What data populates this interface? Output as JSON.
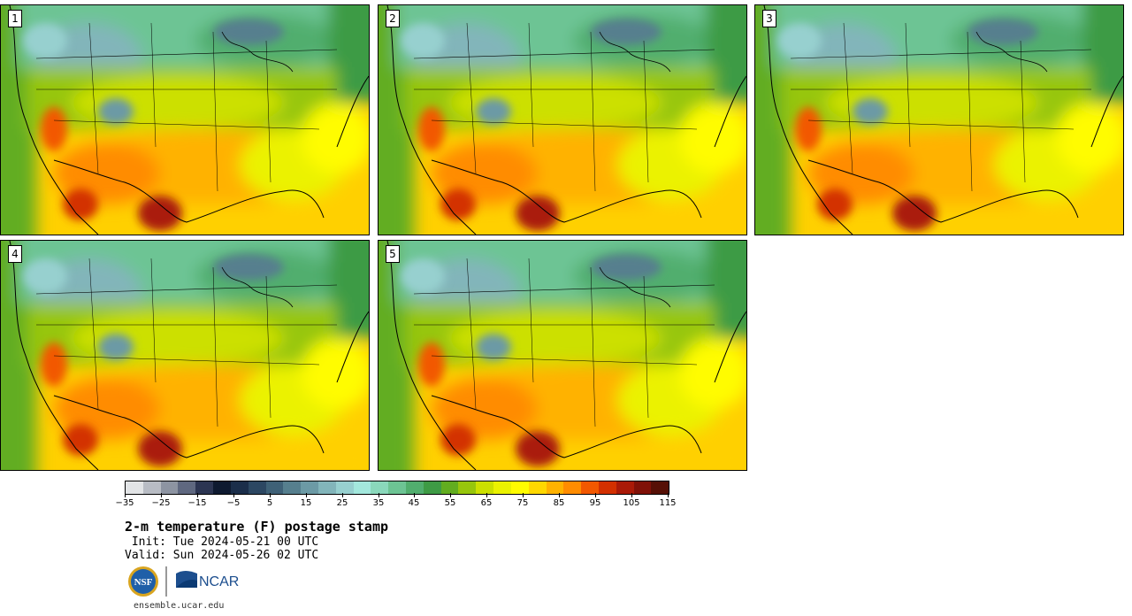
{
  "title": "2-m temperature (F) postage stamp",
  "init_label": " Init: Tue 2024-05-21 00 UTC",
  "valid_label": "Valid: Sun 2024-05-26 02 UTC",
  "url": "ensemble.ucar.edu",
  "logos": {
    "nsf": "NSF",
    "ncar": "NCAR"
  },
  "members": [
    {
      "label": "1"
    },
    {
      "label": "2"
    },
    {
      "label": "3"
    },
    {
      "label": "4"
    },
    {
      "label": "5"
    }
  ],
  "colorbar": {
    "colors": [
      "#e2e4e6",
      "#b8bcc4",
      "#8d94a2",
      "#5f6880",
      "#2c3552",
      "#0e1a30",
      "#1b2e4a",
      "#2c4762",
      "#3f6177",
      "#567f8e",
      "#6c9aa5",
      "#82b5ba",
      "#97d0cf",
      "#a3e8dd",
      "#8ad8bb",
      "#6dc494",
      "#51ae6e",
      "#3e9b45",
      "#62ad20",
      "#97c60c",
      "#cce000",
      "#ebf200",
      "#fffc00",
      "#ffd800",
      "#ffb200",
      "#ff8c00",
      "#f25800",
      "#d33000",
      "#aa1a08",
      "#801108",
      "#561006"
    ],
    "tick_labels": [
      "−35",
      "−25",
      "−15",
      "−5",
      "5",
      "15",
      "25",
      "35",
      "45",
      "55",
      "65",
      "75",
      "85",
      "95",
      "105",
      "115"
    ]
  }
}
